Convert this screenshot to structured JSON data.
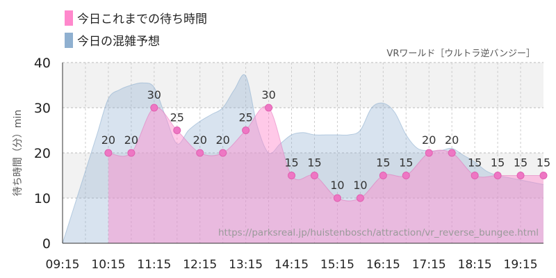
{
  "legend": [
    {
      "label": "今日これまでの待ち時間",
      "color": "#ff88cc"
    },
    {
      "label": "今日の混雑予想",
      "color": "#8fb0d0"
    }
  ],
  "attraction_label": "VRワールド［ウルトラ逆バンジー］",
  "source_url": "https://parksreal.jp/huistenbosch/attraction/vr_reverse_bungee.html",
  "chart_data": {
    "type": "area",
    "ylabel": "待ち時間（分）min",
    "ylim": [
      0,
      40
    ],
    "yticks": [
      0,
      10,
      20,
      30,
      40
    ],
    "x_start": "09:15",
    "x_end": "19:45",
    "xtick_labels": [
      "09:15",
      "10:15",
      "11:15",
      "12:15",
      "13:15",
      "14:15",
      "15:15",
      "16:15",
      "17:15",
      "18:15",
      "19:15"
    ],
    "grid": true,
    "series": [
      {
        "name": "今日これまでの待ち時間",
        "color": "#ff88cc",
        "x": [
          "10:15",
          "10:45",
          "11:15",
          "11:45",
          "12:15",
          "12:45",
          "13:15",
          "13:45",
          "14:15",
          "14:45",
          "15:15",
          "15:45",
          "16:15",
          "16:45",
          "17:15",
          "17:45",
          "18:15",
          "18:45",
          "19:15",
          "19:45"
        ],
        "values": [
          20,
          20,
          30,
          25,
          20,
          20,
          25,
          30,
          15,
          15,
          10,
          10,
          15,
          15,
          20,
          20,
          15,
          15,
          15,
          15
        ]
      },
      {
        "name": "今日の混雑予想",
        "color": "#8fb0d0",
        "x": [
          "09:15",
          "09:30",
          "09:45",
          "10:00",
          "10:15",
          "10:30",
          "10:45",
          "11:00",
          "11:15",
          "11:30",
          "11:45",
          "12:00",
          "12:15",
          "12:30",
          "12:45",
          "13:00",
          "13:15",
          "13:30",
          "13:45",
          "14:00",
          "14:15",
          "14:30",
          "14:45",
          "15:00",
          "15:15",
          "15:30",
          "15:45",
          "16:00",
          "16:15",
          "16:30",
          "16:45",
          "17:00",
          "17:15",
          "17:30",
          "17:45",
          "18:00",
          "18:15",
          "18:30",
          "18:45",
          "19:00",
          "19:15",
          "19:30",
          "19:45"
        ],
        "values": [
          0,
          8,
          16,
          24,
          32,
          34,
          35,
          35.5,
          34.5,
          28,
          22,
          25,
          27,
          28.5,
          30,
          34,
          37,
          26,
          20,
          22,
          24,
          24.5,
          24,
          24,
          24,
          24,
          25,
          30,
          31,
          29,
          24,
          21,
          20.5,
          20.5,
          21,
          19.5,
          18,
          16,
          15,
          14.5,
          14,
          13.5,
          13
        ]
      }
    ]
  }
}
